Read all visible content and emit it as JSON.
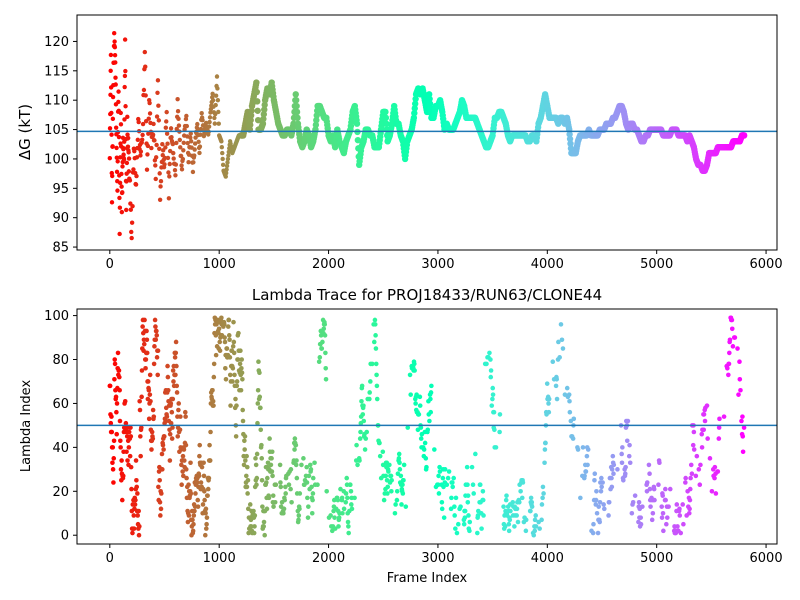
{
  "chart_data": [
    {
      "type": "scatter",
      "title": "",
      "xlabel": "",
      "ylabel": "ΔG (kT)",
      "xlim": [
        -300,
        6100
      ],
      "ylim": [
        84.5,
        124.5
      ],
      "xticks": [
        0,
        1000,
        2000,
        3000,
        4000,
        5000,
        6000
      ],
      "yticks": [
        85,
        90,
        95,
        100,
        105,
        110,
        115,
        120
      ],
      "xtick_labels": [
        "0",
        "1000",
        "2000",
        "3000",
        "4000",
        "5000",
        "6000"
      ],
      "ytick_labels": [
        "85",
        "90",
        "95",
        "100",
        "105",
        "110",
        "115",
        "120"
      ],
      "colormap": "rainbow (red at frame 0 → violet at last frame)",
      "reference_line": {
        "y": 104.7,
        "color": "#1f77b4"
      },
      "trace_points": [
        [
          0,
          100
        ],
        [
          10,
          118
        ],
        [
          20,
          94
        ],
        [
          30,
          110
        ],
        [
          40,
          122
        ],
        [
          50,
          116
        ],
        [
          60,
          104
        ],
        [
          70,
          96
        ],
        [
          80,
          113
        ],
        [
          90,
          87
        ],
        [
          100,
          108
        ],
        [
          110,
          90
        ],
        [
          120,
          104
        ],
        [
          130,
          99
        ],
        [
          140,
          120
        ],
        [
          150,
          92
        ],
        [
          160,
          106
        ],
        [
          170,
          101
        ],
        [
          180,
          97
        ],
        [
          200,
          86
        ],
        [
          220,
          103
        ],
        [
          240,
          95
        ],
        [
          260,
          107
        ],
        [
          280,
          100
        ],
        [
          300,
          104
        ],
        [
          320,
          119
        ],
        [
          340,
          98
        ],
        [
          360,
          110
        ],
        [
          380,
          102
        ],
        [
          400,
          106
        ],
        [
          420,
          96
        ],
        [
          440,
          114
        ],
        [
          460,
          93
        ],
        [
          480,
          102
        ],
        [
          500,
          99
        ],
        [
          520,
          108
        ],
        [
          540,
          94
        ],
        [
          560,
          105
        ],
        [
          580,
          101
        ],
        [
          600,
          97
        ],
        [
          620,
          110
        ],
        [
          640,
          103
        ],
        [
          660,
          98
        ],
        [
          680,
          104
        ],
        [
          700,
          107
        ],
        [
          720,
          100
        ],
        [
          740,
          104
        ],
        [
          760,
          98
        ],
        [
          780,
          103
        ],
        [
          800,
          106
        ],
        [
          820,
          101
        ],
        [
          840,
          108
        ],
        [
          860,
          104
        ],
        [
          880,
          106
        ],
        [
          900,
          104
        ],
        [
          920,
          108
        ],
        [
          940,
          111
        ],
        [
          960,
          106
        ],
        [
          980,
          114
        ],
        [
          1000,
          104
        ],
        [
          1020,
          103
        ],
        [
          1040,
          98
        ],
        [
          1060,
          97
        ],
        [
          1080,
          100
        ],
        [
          1100,
          103
        ],
        [
          1120,
          101
        ],
        [
          1140,
          102
        ],
        [
          1160,
          103
        ],
        [
          1180,
          104
        ],
        [
          1200,
          104
        ],
        [
          1220,
          104
        ],
        [
          1240,
          106
        ],
        [
          1260,
          108
        ],
        [
          1280,
          105
        ],
        [
          1300,
          109
        ],
        [
          1320,
          111
        ],
        [
          1340,
          113
        ],
        [
          1360,
          105
        ],
        [
          1380,
          105
        ],
        [
          1400,
          106
        ],
        [
          1420,
          110
        ],
        [
          1440,
          112
        ],
        [
          1460,
          111
        ],
        [
          1480,
          113
        ],
        [
          1500,
          110
        ],
        [
          1520,
          108
        ],
        [
          1540,
          106
        ],
        [
          1560,
          105
        ],
        [
          1580,
          104
        ],
        [
          1600,
          104
        ],
        [
          1620,
          105
        ],
        [
          1640,
          105
        ],
        [
          1660,
          104
        ],
        [
          1680,
          106
        ],
        [
          1700,
          111
        ],
        [
          1720,
          106
        ],
        [
          1740,
          103
        ],
        [
          1760,
          102
        ],
        [
          1780,
          103
        ],
        [
          1800,
          105
        ],
        [
          1820,
          104
        ],
        [
          1840,
          102
        ],
        [
          1860,
          103
        ],
        [
          1880,
          105
        ],
        [
          1900,
          109
        ],
        [
          1920,
          109
        ],
        [
          1940,
          108
        ],
        [
          1960,
          107
        ],
        [
          1980,
          107
        ],
        [
          2000,
          104
        ],
        [
          2020,
          103
        ],
        [
          2040,
          104
        ],
        [
          2060,
          102
        ],
        [
          2080,
          105
        ],
        [
          2100,
          103
        ],
        [
          2120,
          102
        ],
        [
          2140,
          101
        ],
        [
          2160,
          103
        ],
        [
          2180,
          104
        ],
        [
          2200,
          105
        ],
        [
          2220,
          108
        ],
        [
          2240,
          109
        ],
        [
          2260,
          106
        ],
        [
          2280,
          99
        ],
        [
          2300,
          102
        ],
        [
          2320,
          103
        ],
        [
          2340,
          105
        ],
        [
          2360,
          105
        ],
        [
          2380,
          104
        ],
        [
          2400,
          104
        ],
        [
          2420,
          102
        ],
        [
          2440,
          102
        ],
        [
          2460,
          102
        ],
        [
          2480,
          105
        ],
        [
          2500,
          108
        ],
        [
          2520,
          108
        ],
        [
          2540,
          103
        ],
        [
          2560,
          104
        ],
        [
          2580,
          106
        ],
        [
          2600,
          109
        ],
        [
          2620,
          106
        ],
        [
          2640,
          106
        ],
        [
          2660,
          104
        ],
        [
          2680,
          103
        ],
        [
          2700,
          100
        ],
        [
          2720,
          103
        ],
        [
          2740,
          104
        ],
        [
          2760,
          105
        ],
        [
          2780,
          107
        ],
        [
          2800,
          111
        ],
        [
          2820,
          112
        ],
        [
          2840,
          111
        ],
        [
          2860,
          112
        ],
        [
          2880,
          110
        ],
        [
          2900,
          108
        ],
        [
          2920,
          111
        ],
        [
          2940,
          107
        ],
        [
          2960,
          107
        ],
        [
          2980,
          109
        ],
        [
          3000,
          109
        ],
        [
          3020,
          110
        ],
        [
          3040,
          108
        ],
        [
          3060,
          105
        ],
        [
          3080,
          106
        ],
        [
          3100,
          105
        ],
        [
          3120,
          105
        ],
        [
          3140,
          105
        ],
        [
          3160,
          106
        ],
        [
          3180,
          107
        ],
        [
          3200,
          108
        ],
        [
          3220,
          110
        ],
        [
          3240,
          109
        ],
        [
          3260,
          107
        ],
        [
          3280,
          107
        ],
        [
          3300,
          107
        ],
        [
          3320,
          107
        ],
        [
          3340,
          107
        ],
        [
          3360,
          106
        ],
        [
          3380,
          105
        ],
        [
          3400,
          104
        ],
        [
          3420,
          103
        ],
        [
          3440,
          102
        ],
        [
          3460,
          102
        ],
        [
          3480,
          103
        ],
        [
          3500,
          104
        ],
        [
          3520,
          107
        ],
        [
          3540,
          107
        ],
        [
          3560,
          108
        ],
        [
          3580,
          108
        ],
        [
          3600,
          107
        ],
        [
          3620,
          106
        ],
        [
          3640,
          104
        ],
        [
          3660,
          103
        ],
        [
          3680,
          104
        ],
        [
          3700,
          104
        ],
        [
          3720,
          104
        ],
        [
          3740,
          104
        ],
        [
          3760,
          104
        ],
        [
          3780,
          104
        ],
        [
          3800,
          104
        ],
        [
          3820,
          103
        ],
        [
          3840,
          103
        ],
        [
          3860,
          104
        ],
        [
          3880,
          104
        ],
        [
          3900,
          103
        ],
        [
          3920,
          106
        ],
        [
          3940,
          107
        ],
        [
          3960,
          109
        ],
        [
          3980,
          111
        ],
        [
          4000,
          109
        ],
        [
          4020,
          107
        ],
        [
          4040,
          107
        ],
        [
          4060,
          107
        ],
        [
          4080,
          107
        ],
        [
          4100,
          106
        ],
        [
          4120,
          107
        ],
        [
          4140,
          107
        ],
        [
          4160,
          106
        ],
        [
          4180,
          107
        ],
        [
          4200,
          105
        ],
        [
          4220,
          101
        ],
        [
          4240,
          101
        ],
        [
          4260,
          101
        ],
        [
          4280,
          103
        ],
        [
          4300,
          104
        ],
        [
          4320,
          104
        ],
        [
          4340,
          104
        ],
        [
          4360,
          104
        ],
        [
          4380,
          105
        ],
        [
          4400,
          104
        ],
        [
          4420,
          104
        ],
        [
          4440,
          104
        ],
        [
          4460,
          104
        ],
        [
          4480,
          105
        ],
        [
          4500,
          105
        ],
        [
          4520,
          105
        ],
        [
          4540,
          106
        ],
        [
          4560,
          106
        ],
        [
          4580,
          106
        ],
        [
          4600,
          107
        ],
        [
          4620,
          107
        ],
        [
          4640,
          108
        ],
        [
          4660,
          109
        ],
        [
          4680,
          109
        ],
        [
          4700,
          108
        ],
        [
          4720,
          106
        ],
        [
          4740,
          105
        ],
        [
          4760,
          106
        ],
        [
          4780,
          106
        ],
        [
          4800,
          105
        ],
        [
          4820,
          105
        ],
        [
          4840,
          104
        ],
        [
          4860,
          103
        ],
        [
          4880,
          103
        ],
        [
          4900,
          104
        ],
        [
          4920,
          104
        ],
        [
          4940,
          105
        ],
        [
          4960,
          105
        ],
        [
          4980,
          105
        ],
        [
          5000,
          105
        ],
        [
          5020,
          105
        ],
        [
          5040,
          105
        ],
        [
          5060,
          104
        ],
        [
          5080,
          104
        ],
        [
          5100,
          104
        ],
        [
          5120,
          104
        ],
        [
          5140,
          105
        ],
        [
          5160,
          105
        ],
        [
          5180,
          105
        ],
        [
          5200,
          104
        ],
        [
          5220,
          104
        ],
        [
          5240,
          104
        ],
        [
          5260,
          104
        ],
        [
          5280,
          103
        ],
        [
          5300,
          104
        ],
        [
          5320,
          103
        ],
        [
          5340,
          102
        ],
        [
          5360,
          100
        ],
        [
          5380,
          99
        ],
        [
          5400,
          99
        ],
        [
          5420,
          98
        ],
        [
          5440,
          98
        ],
        [
          5460,
          99
        ],
        [
          5480,
          101
        ],
        [
          5500,
          101
        ],
        [
          5520,
          101
        ],
        [
          5540,
          101
        ],
        [
          5560,
          102
        ],
        [
          5580,
          102
        ],
        [
          5600,
          102
        ],
        [
          5620,
          102
        ],
        [
          5640,
          102
        ],
        [
          5660,
          102
        ],
        [
          5680,
          102
        ],
        [
          5700,
          103
        ],
        [
          5720,
          103
        ],
        [
          5740,
          103
        ],
        [
          5760,
          103
        ],
        [
          5780,
          104
        ],
        [
          5800,
          104
        ]
      ]
    },
    {
      "type": "scatter",
      "title": "Lambda Trace for PROJ18433/RUN63/CLONE44",
      "xlabel": "Frame Index",
      "ylabel": "Lambda Index",
      "xlim": [
        -300,
        6100
      ],
      "ylim": [
        -4,
        103
      ],
      "xticks": [
        0,
        1000,
        2000,
        3000,
        4000,
        5000,
        6000
      ],
      "yticks": [
        0,
        20,
        40,
        60,
        80,
        100
      ],
      "xtick_labels": [
        "0",
        "1000",
        "2000",
        "3000",
        "4000",
        "5000",
        "6000"
      ],
      "ytick_labels": [
        "0",
        "20",
        "40",
        "60",
        "80",
        "100"
      ],
      "colormap": "rainbow (red at frame 0 → violet at last frame)",
      "reference_line": {
        "y": 50,
        "color": "#1f77b4"
      },
      "frames": 5800,
      "lambda_range": [
        0,
        99
      ]
    }
  ]
}
